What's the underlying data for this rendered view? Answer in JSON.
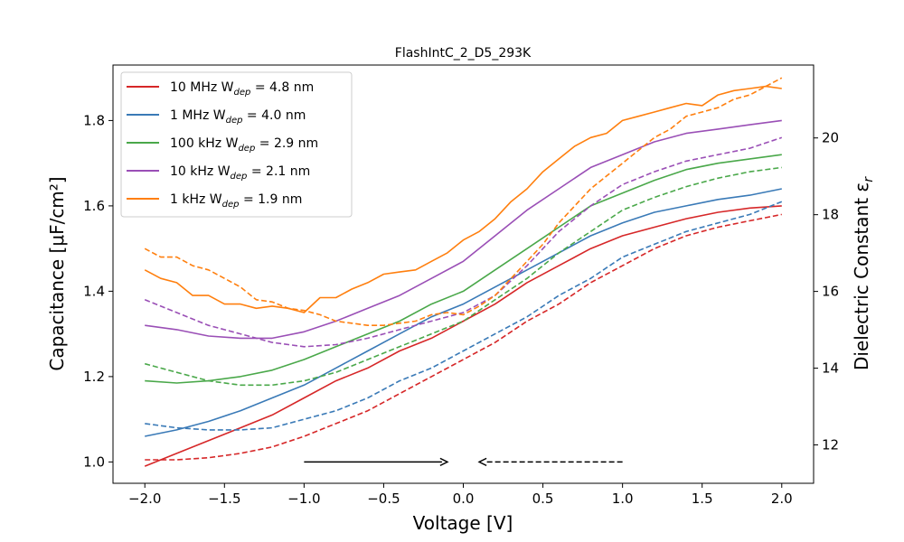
{
  "chart_data": {
    "type": "line",
    "title": "FlashIntC_2_D5_293K",
    "xlabel": "Voltage [V]",
    "ylabel": "Capacitance [μF/cm²]",
    "y2label": "Dielectric Constant ε",
    "y2label_sub": "r",
    "xlim": [
      -2.2,
      2.2
    ],
    "ylim": [
      0.95,
      1.93
    ],
    "y2lim": [
      11.0,
      21.9
    ],
    "xticks": [
      -2.0,
      -1.5,
      -1.0,
      -0.5,
      0.0,
      0.5,
      1.0,
      1.5,
      2.0
    ],
    "xtick_labels": [
      "−2.0",
      "−1.5",
      "−1.0",
      "−0.5",
      "0.0",
      "0.5",
      "1.0",
      "1.5",
      "2.0"
    ],
    "yticks": [
      1.0,
      1.2,
      1.4,
      1.6,
      1.8
    ],
    "ytick_labels": [
      "1.0",
      "1.2",
      "1.4",
      "1.6",
      "1.8"
    ],
    "y2ticks": [
      12,
      14,
      16,
      18,
      20
    ],
    "y2tick_labels": [
      "12",
      "14",
      "16",
      "18",
      "20"
    ],
    "grid": false,
    "legend_position": "top-left",
    "series": [
      {
        "name_prefix": "10 MHz  W",
        "name_sub": "dep",
        "name_suffix": " = 4.8 nm",
        "color": "#d62728",
        "forward": {
          "x": [
            -2.0,
            -1.8,
            -1.6,
            -1.4,
            -1.2,
            -1.0,
            -0.8,
            -0.6,
            -0.4,
            -0.2,
            0.0,
            0.2,
            0.4,
            0.6,
            0.8,
            1.0,
            1.2,
            1.4,
            1.6,
            1.8,
            2.0
          ],
          "y": [
            0.99,
            1.02,
            1.05,
            1.08,
            1.11,
            1.15,
            1.19,
            1.22,
            1.26,
            1.29,
            1.33,
            1.37,
            1.42,
            1.46,
            1.5,
            1.53,
            1.55,
            1.57,
            1.585,
            1.595,
            1.6
          ]
        },
        "reverse": {
          "x": [
            -2.0,
            -1.8,
            -1.6,
            -1.4,
            -1.2,
            -1.0,
            -0.8,
            -0.6,
            -0.4,
            -0.2,
            0.0,
            0.2,
            0.4,
            0.6,
            0.8,
            1.0,
            1.2,
            1.4,
            1.6,
            1.8,
            2.0
          ],
          "y": [
            1.005,
            1.005,
            1.01,
            1.02,
            1.035,
            1.06,
            1.09,
            1.12,
            1.16,
            1.2,
            1.24,
            1.28,
            1.33,
            1.37,
            1.42,
            1.46,
            1.5,
            1.53,
            1.55,
            1.565,
            1.58
          ]
        }
      },
      {
        "name_prefix": "1 MHz   W",
        "name_sub": "dep",
        "name_suffix": " = 4.0 nm",
        "color": "#3a7ab7",
        "forward": {
          "x": [
            -2.0,
            -1.8,
            -1.6,
            -1.4,
            -1.2,
            -1.0,
            -0.8,
            -0.6,
            -0.4,
            -0.2,
            0.0,
            0.2,
            0.4,
            0.6,
            0.8,
            1.0,
            1.2,
            1.4,
            1.6,
            1.8,
            2.0
          ],
          "y": [
            1.06,
            1.075,
            1.095,
            1.12,
            1.15,
            1.18,
            1.22,
            1.26,
            1.3,
            1.34,
            1.37,
            1.41,
            1.45,
            1.49,
            1.53,
            1.56,
            1.585,
            1.6,
            1.615,
            1.625,
            1.64
          ]
        },
        "reverse": {
          "x": [
            -2.0,
            -1.8,
            -1.6,
            -1.4,
            -1.2,
            -1.0,
            -0.8,
            -0.6,
            -0.4,
            -0.2,
            0.0,
            0.2,
            0.4,
            0.6,
            0.8,
            1.0,
            1.2,
            1.4,
            1.6,
            1.8,
            2.0
          ],
          "y": [
            1.09,
            1.08,
            1.075,
            1.075,
            1.08,
            1.1,
            1.12,
            1.15,
            1.19,
            1.22,
            1.26,
            1.3,
            1.34,
            1.39,
            1.43,
            1.48,
            1.51,
            1.54,
            1.56,
            1.58,
            1.61
          ]
        }
      },
      {
        "name_prefix": "100 kHz W",
        "name_sub": "dep",
        "name_suffix": " = 2.9 nm",
        "color": "#4aa84a",
        "forward": {
          "x": [
            -2.0,
            -1.8,
            -1.6,
            -1.4,
            -1.2,
            -1.0,
            -0.8,
            -0.6,
            -0.4,
            -0.2,
            0.0,
            0.2,
            0.4,
            0.6,
            0.8,
            1.0,
            1.2,
            1.4,
            1.6,
            1.8,
            2.0
          ],
          "y": [
            1.19,
            1.185,
            1.19,
            1.2,
            1.215,
            1.24,
            1.27,
            1.3,
            1.33,
            1.37,
            1.4,
            1.45,
            1.5,
            1.55,
            1.6,
            1.63,
            1.66,
            1.685,
            1.7,
            1.71,
            1.72
          ]
        },
        "reverse": {
          "x": [
            -2.0,
            -1.8,
            -1.6,
            -1.4,
            -1.2,
            -1.0,
            -0.8,
            -0.6,
            -0.4,
            -0.2,
            0.0,
            0.2,
            0.4,
            0.6,
            0.8,
            1.0,
            1.2,
            1.4,
            1.6,
            1.8,
            2.0
          ],
          "y": [
            1.23,
            1.21,
            1.19,
            1.18,
            1.18,
            1.19,
            1.21,
            1.24,
            1.27,
            1.3,
            1.33,
            1.38,
            1.43,
            1.49,
            1.54,
            1.59,
            1.62,
            1.645,
            1.665,
            1.68,
            1.69
          ]
        }
      },
      {
        "name_prefix": "10 kHz  W",
        "name_sub": "dep",
        "name_suffix": " = 2.1 nm",
        "color": "#9a4fb6",
        "forward": {
          "x": [
            -2.0,
            -1.8,
            -1.6,
            -1.4,
            -1.2,
            -1.0,
            -0.8,
            -0.6,
            -0.4,
            -0.2,
            0.0,
            0.2,
            0.4,
            0.6,
            0.8,
            1.0,
            1.2,
            1.4,
            1.6,
            1.8,
            2.0
          ],
          "y": [
            1.32,
            1.31,
            1.295,
            1.29,
            1.29,
            1.305,
            1.33,
            1.36,
            1.39,
            1.43,
            1.47,
            1.53,
            1.59,
            1.64,
            1.69,
            1.72,
            1.75,
            1.77,
            1.78,
            1.79,
            1.8
          ]
        },
        "reverse": {
          "x": [
            -2.0,
            -1.8,
            -1.6,
            -1.4,
            -1.2,
            -1.0,
            -0.8,
            -0.6,
            -0.4,
            -0.2,
            0.0,
            0.2,
            0.4,
            0.6,
            0.8,
            1.0,
            1.2,
            1.4,
            1.6,
            1.8,
            2.0
          ],
          "y": [
            1.38,
            1.35,
            1.32,
            1.3,
            1.28,
            1.27,
            1.275,
            1.29,
            1.31,
            1.33,
            1.35,
            1.39,
            1.46,
            1.54,
            1.6,
            1.65,
            1.68,
            1.705,
            1.72,
            1.735,
            1.76
          ]
        }
      },
      {
        "name_prefix": "1 kHz   W",
        "name_sub": "dep",
        "name_suffix": " = 1.9 nm",
        "color": "#ff7f0e",
        "forward": {
          "x": [
            -2.0,
            -1.9,
            -1.8,
            -1.7,
            -1.6,
            -1.5,
            -1.4,
            -1.3,
            -1.2,
            -1.1,
            -1.0,
            -0.9,
            -0.8,
            -0.7,
            -0.6,
            -0.5,
            -0.4,
            -0.3,
            -0.2,
            -0.1,
            0.0,
            0.1,
            0.2,
            0.3,
            0.4,
            0.5,
            0.6,
            0.7,
            0.8,
            0.9,
            1.0,
            1.1,
            1.2,
            1.3,
            1.4,
            1.5,
            1.6,
            1.7,
            1.8,
            1.9,
            2.0
          ],
          "y": [
            1.45,
            1.43,
            1.42,
            1.39,
            1.39,
            1.37,
            1.37,
            1.36,
            1.365,
            1.36,
            1.35,
            1.385,
            1.385,
            1.405,
            1.42,
            1.44,
            1.445,
            1.45,
            1.47,
            1.49,
            1.52,
            1.54,
            1.57,
            1.61,
            1.64,
            1.68,
            1.71,
            1.74,
            1.76,
            1.77,
            1.8,
            1.81,
            1.82,
            1.83,
            1.84,
            1.835,
            1.86,
            1.87,
            1.875,
            1.88,
            1.875
          ]
        },
        "reverse": {
          "x": [
            -2.0,
            -1.9,
            -1.8,
            -1.7,
            -1.6,
            -1.5,
            -1.4,
            -1.3,
            -1.2,
            -1.1,
            -1.0,
            -0.9,
            -0.8,
            -0.7,
            -0.6,
            -0.5,
            -0.4,
            -0.3,
            -0.2,
            -0.1,
            0.0,
            0.1,
            0.2,
            0.3,
            0.4,
            0.5,
            0.6,
            0.7,
            0.8,
            0.9,
            1.0,
            1.1,
            1.2,
            1.3,
            1.4,
            1.5,
            1.6,
            1.7,
            1.8,
            1.9,
            2.0
          ],
          "y": [
            1.5,
            1.48,
            1.48,
            1.46,
            1.45,
            1.43,
            1.41,
            1.38,
            1.375,
            1.36,
            1.355,
            1.345,
            1.33,
            1.325,
            1.32,
            1.32,
            1.325,
            1.33,
            1.345,
            1.35,
            1.345,
            1.365,
            1.39,
            1.43,
            1.47,
            1.51,
            1.56,
            1.6,
            1.64,
            1.67,
            1.7,
            1.73,
            1.76,
            1.78,
            1.81,
            1.82,
            1.83,
            1.85,
            1.86,
            1.88,
            1.9
          ]
        }
      }
    ],
    "annotations": {
      "forward_arrow": {
        "x_from": -1.0,
        "x_to": -0.1,
        "y": 1.0,
        "style": "solid"
      },
      "reverse_arrow": {
        "x_from": 1.0,
        "x_to": 0.1,
        "y": 1.0,
        "style": "dashed"
      }
    }
  }
}
